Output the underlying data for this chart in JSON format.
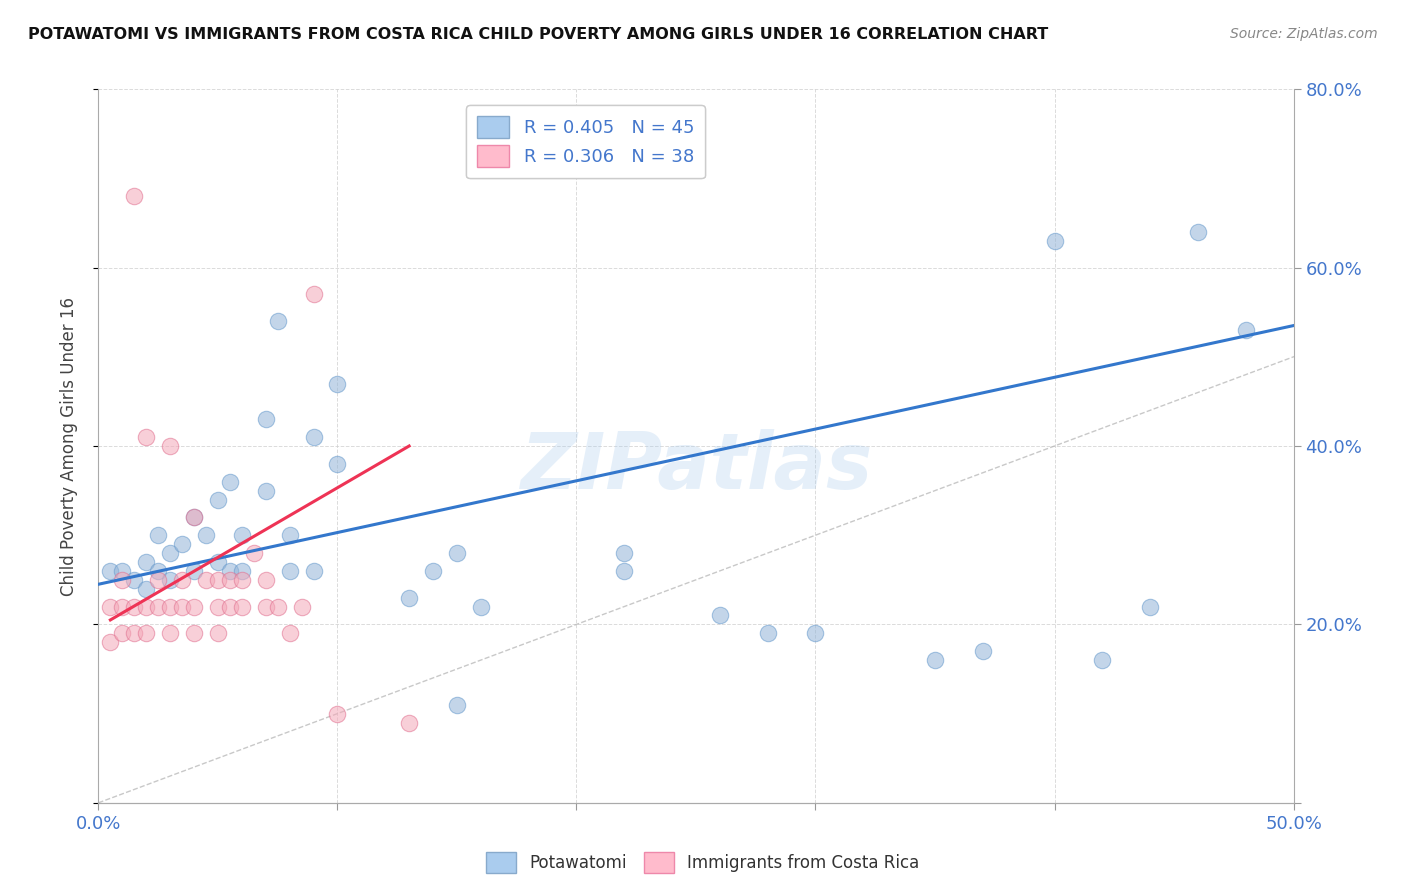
{
  "title": "POTAWATOMI VS IMMIGRANTS FROM COSTA RICA CHILD POVERTY AMONG GIRLS UNDER 16 CORRELATION CHART",
  "source": "Source: ZipAtlas.com",
  "ylabel": "Child Poverty Among Girls Under 16",
  "xlim": [
    0,
    0.5
  ],
  "ylim": [
    0,
    0.8
  ],
  "legend_blue_label": "R = 0.405   N = 45",
  "legend_pink_label": "R = 0.306   N = 38",
  "legend_label1": "Potawatomi",
  "legend_label2": "Immigrants from Costa Rica",
  "blue_color": "#92B4D8",
  "blue_edge_color": "#6699CC",
  "pink_color": "#F4A8B8",
  "pink_edge_color": "#E07090",
  "trendline_blue_color": "#3377CC",
  "trendline_pink_color": "#EE3355",
  "watermark": "ZIPatlas",
  "blue_scatter_x": [
    0.005,
    0.01,
    0.015,
    0.02,
    0.02,
    0.025,
    0.025,
    0.03,
    0.03,
    0.035,
    0.04,
    0.04,
    0.045,
    0.05,
    0.05,
    0.055,
    0.055,
    0.06,
    0.06,
    0.07,
    0.07,
    0.075,
    0.08,
    0.08,
    0.09,
    0.09,
    0.1,
    0.1,
    0.13,
    0.14,
    0.15,
    0.15,
    0.16,
    0.22,
    0.22,
    0.26,
    0.28,
    0.3,
    0.35,
    0.37,
    0.4,
    0.42,
    0.44,
    0.46,
    0.48
  ],
  "blue_scatter_y": [
    0.26,
    0.26,
    0.25,
    0.24,
    0.27,
    0.26,
    0.3,
    0.25,
    0.28,
    0.29,
    0.26,
    0.32,
    0.3,
    0.27,
    0.34,
    0.26,
    0.36,
    0.26,
    0.3,
    0.35,
    0.43,
    0.54,
    0.26,
    0.3,
    0.26,
    0.41,
    0.38,
    0.47,
    0.23,
    0.26,
    0.28,
    0.11,
    0.22,
    0.26,
    0.28,
    0.21,
    0.19,
    0.19,
    0.16,
    0.17,
    0.63,
    0.16,
    0.22,
    0.64,
    0.53
  ],
  "pink_scatter_x": [
    0.005,
    0.005,
    0.01,
    0.01,
    0.01,
    0.015,
    0.015,
    0.015,
    0.02,
    0.02,
    0.02,
    0.025,
    0.025,
    0.03,
    0.03,
    0.03,
    0.035,
    0.035,
    0.04,
    0.04,
    0.04,
    0.045,
    0.05,
    0.05,
    0.05,
    0.055,
    0.055,
    0.06,
    0.06,
    0.065,
    0.07,
    0.07,
    0.075,
    0.08,
    0.085,
    0.09,
    0.1,
    0.13
  ],
  "pink_scatter_y": [
    0.18,
    0.22,
    0.19,
    0.22,
    0.25,
    0.19,
    0.22,
    0.68,
    0.19,
    0.22,
    0.41,
    0.22,
    0.25,
    0.19,
    0.22,
    0.4,
    0.22,
    0.25,
    0.19,
    0.22,
    0.32,
    0.25,
    0.19,
    0.22,
    0.25,
    0.22,
    0.25,
    0.22,
    0.25,
    0.28,
    0.22,
    0.25,
    0.22,
    0.19,
    0.22,
    0.57,
    0.1,
    0.09
  ],
  "blue_trend_x": [
    0.0,
    0.5
  ],
  "blue_trend_y": [
    0.245,
    0.535
  ],
  "pink_trend_x": [
    0.005,
    0.13
  ],
  "pink_trend_y": [
    0.205,
    0.4
  ],
  "ref_line_x": [
    0.0,
    0.8
  ],
  "ref_line_y": [
    0.0,
    0.8
  ],
  "background_color": "#FFFFFF",
  "grid_color": "#CCCCCC",
  "axis_color": "#4477CC",
  "tick_color": "#999999",
  "legend_blue_color": "#AACCEE",
  "legend_pink_color": "#FFBBCC"
}
